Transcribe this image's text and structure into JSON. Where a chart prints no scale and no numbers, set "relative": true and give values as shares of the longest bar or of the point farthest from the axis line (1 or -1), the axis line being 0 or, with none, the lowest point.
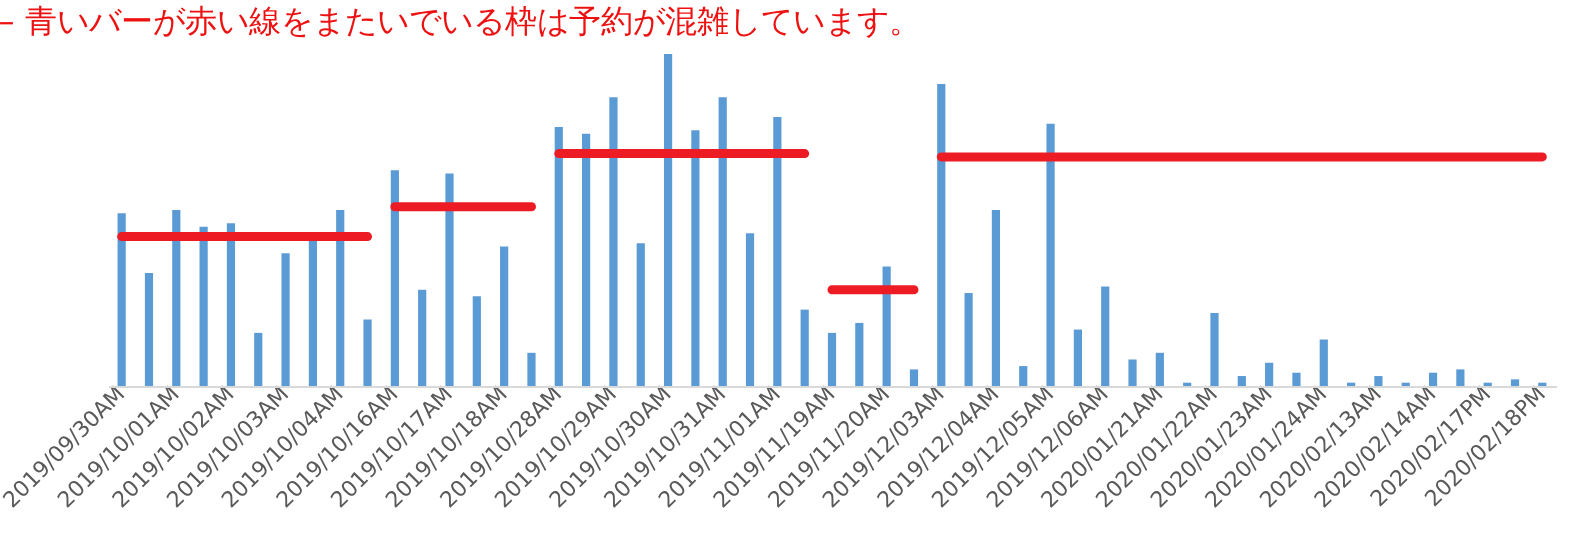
{
  "chart_data": {
    "type": "bar",
    "title": "– 青いバーが赤い線をまたいでいる枠は予約が混雑しています。",
    "relative": true,
    "categories": [
      "2019/09/30AM",
      null,
      "2019/10/01AM",
      null,
      "2019/10/02AM",
      null,
      "2019/10/03AM",
      null,
      "2019/10/04AM",
      null,
      "2019/10/16AM",
      null,
      "2019/10/17AM",
      null,
      "2019/10/18AM",
      null,
      "2019/10/28AM",
      null,
      "2019/10/29AM",
      null,
      "2019/10/30AM",
      null,
      "2019/10/31AM",
      null,
      "2019/11/01AM",
      null,
      "2019/11/19AM",
      null,
      "2019/11/20AM",
      null,
      "2019/12/03AM",
      null,
      "2019/12/04AM",
      null,
      "2019/12/05AM",
      null,
      "2019/12/06AM",
      null,
      "2020/01/21AM",
      null,
      "2020/01/22AM",
      null,
      "2020/01/23AM",
      null,
      "2020/01/24AM",
      null,
      "2020/02/13AM",
      null,
      "2020/02/14AM",
      null,
      "2020/02/17PM",
      null,
      "2020/02/18PM"
    ],
    "series": [
      {
        "color": "#5b9bd5",
        "values": [
          0.52,
          0.34,
          0.53,
          0.48,
          0.49,
          0.16,
          0.4,
          0.44,
          0.53,
          0.2,
          0.65,
          0.29,
          0.64,
          0.27,
          0.42,
          0.1,
          0.78,
          0.76,
          0.87,
          0.43,
          1,
          0.77,
          0.87,
          0.46,
          0.81,
          0.23,
          0.16,
          0.19,
          0.36,
          0.05,
          0.91,
          0.28,
          0.53,
          0.06,
          0.79,
          0.17,
          0.3,
          0.08,
          0.1,
          0.01,
          0.22,
          0.03,
          0.07,
          0.04,
          0.14,
          0.01,
          0.03,
          0.01,
          0.04,
          0.05,
          0.01,
          0.02,
          0.01
        ]
      },
      {
        "type": "line",
        "color": "#ed1c24",
        "marker": "none",
        "line_style": "solid",
        "values": [
          0.45,
          0.45,
          0.45,
          0.45,
          0.45,
          0.45,
          0.45,
          0.45,
          0.45,
          0.45,
          0.54,
          0.54,
          0.54,
          0.54,
          0.54,
          0.54,
          0.7,
          0.7,
          0.7,
          0.7,
          0.7,
          0.7,
          0.7,
          0.7,
          0.7,
          0.7,
          0.29,
          0.29,
          0.29,
          0.29,
          0.69,
          0.69,
          0.69,
          0.69,
          0.69,
          0.69,
          0.69,
          0.69,
          0.69,
          0.69,
          0.69,
          0.69,
          0.69,
          0.69,
          0.69,
          0.69,
          0.69,
          0.69,
          0.69,
          0.69,
          0.69,
          0.69,
          0.69
        ]
      }
    ]
  }
}
